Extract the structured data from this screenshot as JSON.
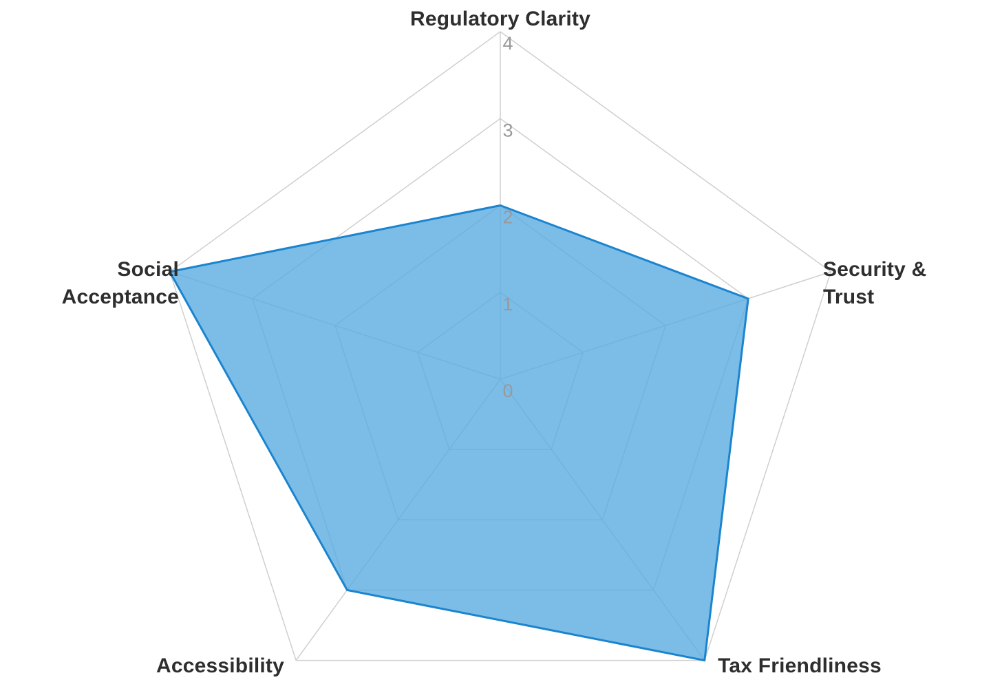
{
  "chart_data": {
    "type": "radar",
    "categories": [
      "Regulatory Clarity",
      "Security & Trust",
      "Tax Friendliness",
      "Accessibility",
      "Social Acceptance"
    ],
    "values": [
      2,
      3,
      4,
      3,
      4
    ],
    "ticks": [
      0,
      1,
      2,
      3,
      4
    ],
    "rlim": [
      0,
      4
    ],
    "grid": true,
    "legend": "none",
    "colors": {
      "series_fill": "#57ABE1",
      "series_fill_opacity": 0.78,
      "series_stroke": "#1B84CE",
      "grid_line": "#CFCFCF",
      "tick_label": "#999999",
      "axis_label": "#2E2E2E",
      "background": "#FFFFFF"
    }
  }
}
